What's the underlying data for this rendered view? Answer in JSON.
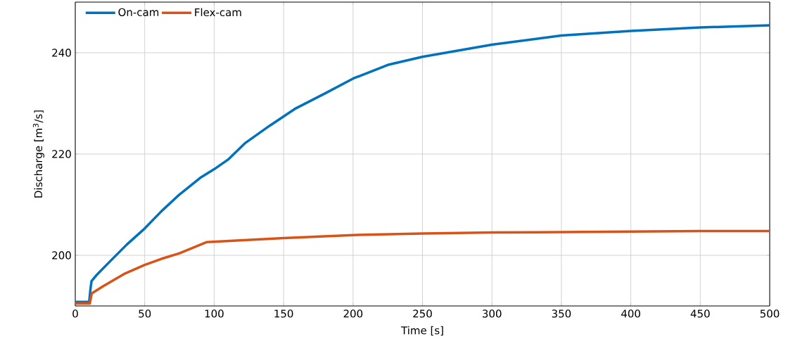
{
  "chart_data": {
    "type": "line",
    "xlabel": "Time [s]",
    "ylabel": "Discharge [m$^{3}$/s]",
    "xlim": [
      0,
      500
    ],
    "ylim": [
      190,
      250
    ],
    "xticks": [
      0,
      50,
      100,
      150,
      200,
      250,
      300,
      350,
      400,
      450,
      500
    ],
    "yticks": [
      200,
      220,
      240
    ],
    "grid": true,
    "legend": "top left",
    "marker": "none",
    "line_style": "solid",
    "series": [
      {
        "name": "On-cam",
        "color": "#0072bd",
        "x": [
          0,
          10,
          11,
          11.7,
          15,
          25,
          37,
          50,
          62,
          75,
          90,
          100,
          110,
          122,
          140,
          158,
          180,
          200,
          225,
          250,
          300,
          350,
          400,
          450,
          500
        ],
        "values": [
          190.8,
          190.8,
          193.5,
          194.9,
          196.0,
          198.8,
          202.1,
          205.3,
          208.7,
          212.0,
          215.3,
          217.0,
          218.9,
          222.1,
          225.6,
          228.9,
          232.0,
          234.9,
          237.6,
          239.2,
          241.6,
          243.4,
          244.3,
          245.0,
          245.4
        ]
      },
      {
        "name": "Flex-cam",
        "color": "#d95319",
        "x": [
          0,
          10.5,
          11.5,
          12,
          20,
          35,
          50,
          62,
          75,
          94.4,
          150,
          200,
          250,
          300,
          350,
          400,
          450,
          500
        ],
        "values": [
          190.5,
          190.5,
          192.0,
          192.5,
          193.9,
          196.3,
          198.1,
          199.3,
          200.4,
          202.6,
          203.4,
          204.0,
          204.3,
          204.5,
          204.6,
          204.7,
          204.8,
          204.8
        ]
      }
    ]
  }
}
